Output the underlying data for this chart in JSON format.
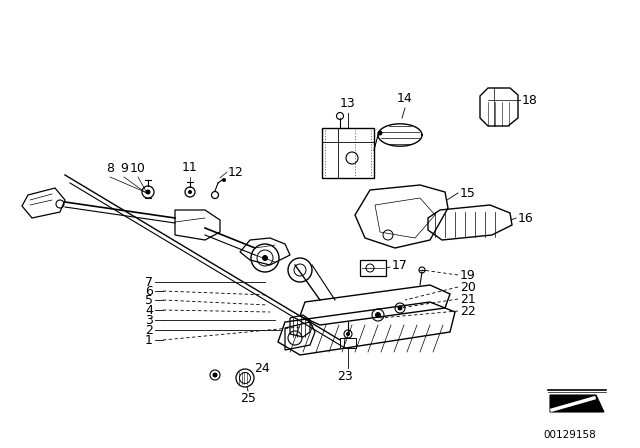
{
  "background_color": "#ffffff",
  "image_id": "00129158",
  "line_color": "#000000",
  "text_color": "#000000",
  "font_size": 9
}
